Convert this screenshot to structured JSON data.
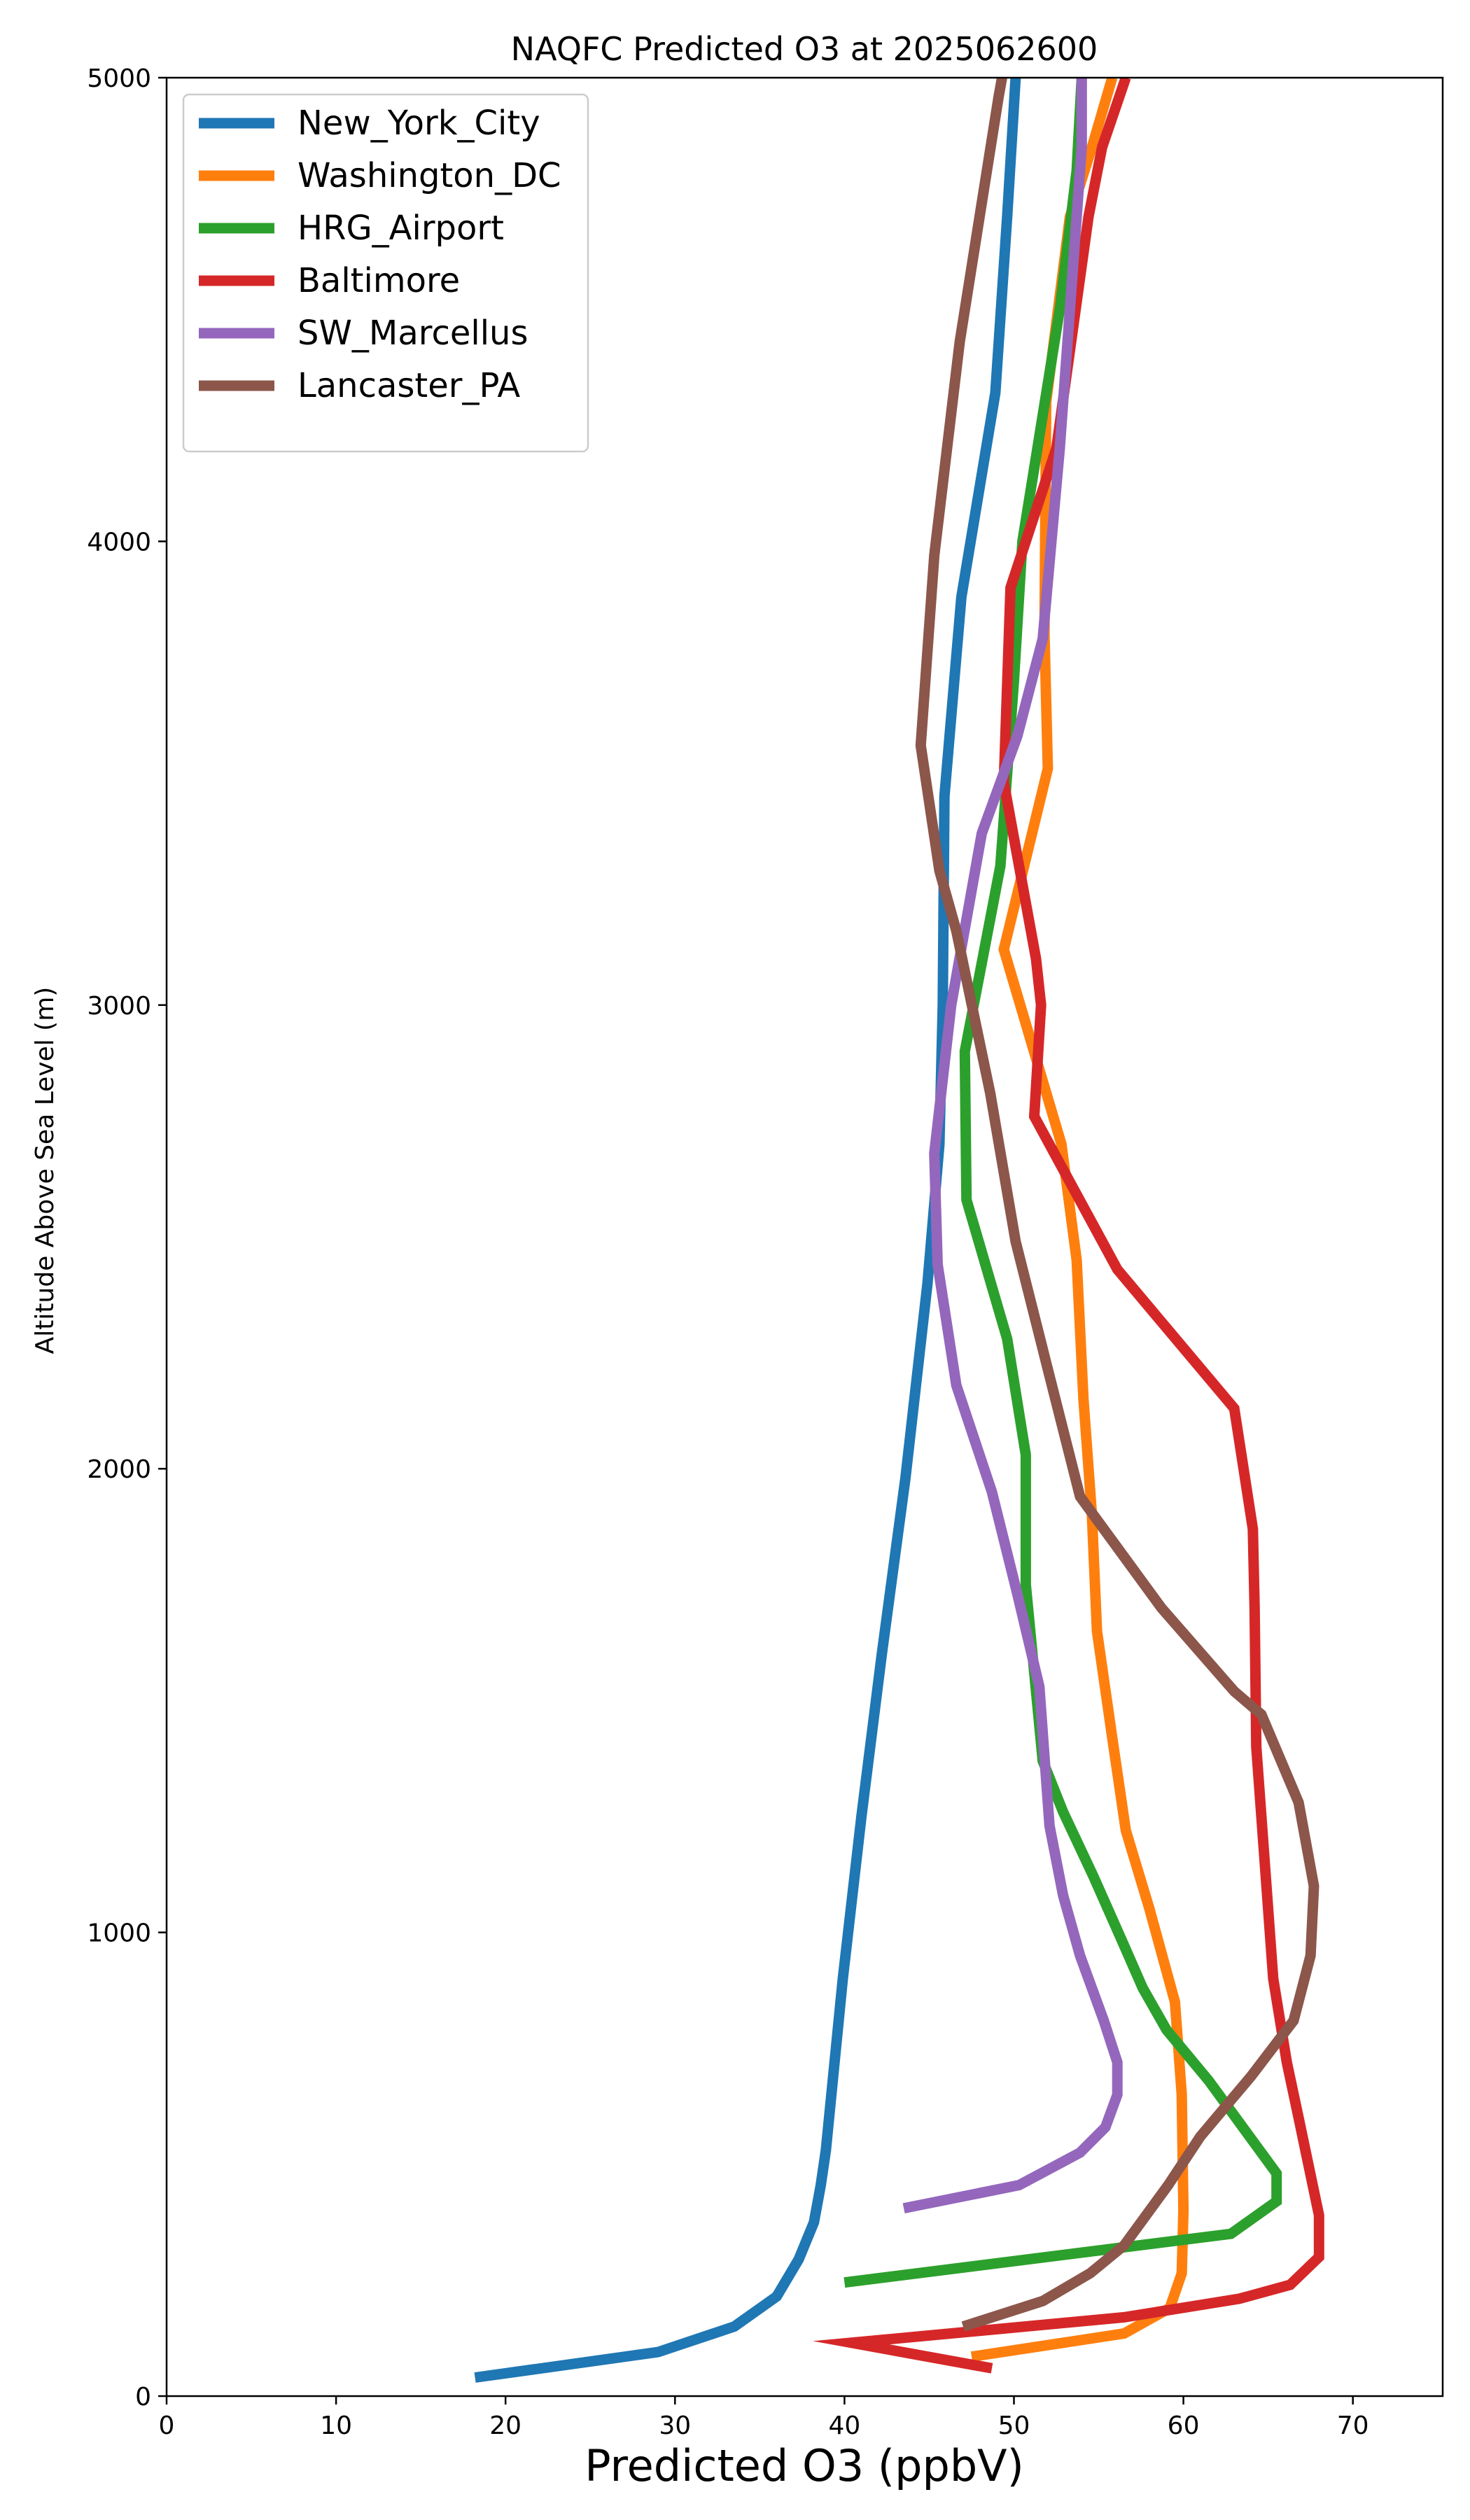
{
  "chart_data": {
    "type": "line",
    "title": "NAQFC Predicted O3 at 2025062600",
    "xlabel": "Predicted O3 (ppbV)",
    "ylabel": "Altitude Above Sea Level (m)",
    "xlim": [
      0,
      75.3
    ],
    "ylim": [
      0,
      5000
    ],
    "xticks": [
      0,
      10,
      20,
      30,
      40,
      50,
      60,
      70
    ],
    "yticks": [
      0,
      1000,
      2000,
      3000,
      4000,
      5000
    ],
    "grid": false,
    "legend_position": "upper-left",
    "series": [
      {
        "name": "New_York_City",
        "color": "#1f77b4",
        "points": [
          [
            18.2,
            40
          ],
          [
            29,
            95
          ],
          [
            33.5,
            150
          ],
          [
            36,
            215
          ],
          [
            37.3,
            295
          ],
          [
            38.2,
            375
          ],
          [
            38.6,
            455
          ],
          [
            38.9,
            530
          ],
          [
            39.9,
            900
          ],
          [
            41,
            1250
          ],
          [
            42.2,
            1600
          ],
          [
            43.6,
            1980
          ],
          [
            44.9,
            2400
          ],
          [
            45.6,
            2700
          ],
          [
            45.8,
            3000
          ],
          [
            45.9,
            3450
          ],
          [
            46.9,
            3880
          ],
          [
            48.9,
            4320
          ],
          [
            49.6,
            4700
          ],
          [
            50.1,
            5000
          ]
        ]
      },
      {
        "name": "Washington_DC",
        "color": "#ff7f0e",
        "points": [
          [
            47.5,
            85
          ],
          [
            56.5,
            135
          ],
          [
            59.2,
            190
          ],
          [
            59.9,
            265
          ],
          [
            60,
            400
          ],
          [
            59.9,
            650
          ],
          [
            59.5,
            850
          ],
          [
            58,
            1050
          ],
          [
            56.6,
            1220
          ],
          [
            55.8,
            1420
          ],
          [
            54.9,
            1650
          ],
          [
            54.6,
            1900
          ],
          [
            54.1,
            2150
          ],
          [
            53.7,
            2450
          ],
          [
            52.8,
            2700
          ],
          [
            49.4,
            3120
          ],
          [
            52,
            3510
          ],
          [
            51.8,
            3800
          ],
          [
            51.9,
            4300
          ],
          [
            53.3,
            4700
          ],
          [
            54.6,
            4850
          ],
          [
            55.8,
            5000
          ]
        ]
      },
      {
        "name": "HRG_Airport",
        "color": "#2ca02c",
        "points": [
          [
            40,
            245
          ],
          [
            62.8,
            350
          ],
          [
            65.5,
            420
          ],
          [
            65.5,
            480
          ],
          [
            63.5,
            580
          ],
          [
            61.5,
            680
          ],
          [
            59,
            790
          ],
          [
            57.6,
            880
          ],
          [
            56.4,
            980
          ],
          [
            54.7,
            1120
          ],
          [
            52.9,
            1260
          ],
          [
            51.7,
            1370
          ],
          [
            50.7,
            1750
          ],
          [
            50.7,
            2030
          ],
          [
            49.6,
            2280
          ],
          [
            47.2,
            2580
          ],
          [
            47.1,
            2900
          ],
          [
            49.2,
            3300
          ],
          [
            50,
            3700
          ],
          [
            50.5,
            4000
          ],
          [
            52.7,
            4500
          ],
          [
            53.7,
            4800
          ],
          [
            54,
            5000
          ]
        ]
      },
      {
        "name": "Baltimore",
        "color": "#d62728",
        "points": [
          [
            48.7,
            60
          ],
          [
            40.4,
            115
          ],
          [
            56.5,
            170
          ],
          [
            63.3,
            210
          ],
          [
            66.3,
            240
          ],
          [
            68,
            300
          ],
          [
            68,
            390
          ],
          [
            66.8,
            600
          ],
          [
            66.1,
            720
          ],
          [
            65.3,
            900
          ],
          [
            64.3,
            1400
          ],
          [
            64.2,
            1700
          ],
          [
            64.1,
            1870
          ],
          [
            63,
            2130
          ],
          [
            56.1,
            2430
          ],
          [
            51.2,
            2760
          ],
          [
            51.6,
            3000
          ],
          [
            51.3,
            3100
          ],
          [
            49.4,
            3480
          ],
          [
            49.8,
            3900
          ],
          [
            52.5,
            4200
          ],
          [
            54.4,
            4700
          ],
          [
            55.2,
            4850
          ],
          [
            56.6,
            5000
          ]
        ]
      },
      {
        "name": "SW_Marcellus",
        "color": "#9467bd",
        "points": [
          [
            43.5,
            405
          ],
          [
            50.3,
            455
          ],
          [
            53.9,
            525
          ],
          [
            55.4,
            580
          ],
          [
            56.1,
            650
          ],
          [
            56.1,
            720
          ],
          [
            55.3,
            810
          ],
          [
            53.9,
            950
          ],
          [
            52.9,
            1080
          ],
          [
            52.1,
            1230
          ],
          [
            51.5,
            1530
          ],
          [
            50.2,
            1730
          ],
          [
            48.7,
            1950
          ],
          [
            46.6,
            2180
          ],
          [
            45.5,
            2440
          ],
          [
            45.3,
            2680
          ],
          [
            46.3,
            3000
          ],
          [
            48.1,
            3370
          ],
          [
            50.2,
            3580
          ],
          [
            51.7,
            3790
          ],
          [
            52.7,
            4200
          ],
          [
            53.7,
            4700
          ],
          [
            54,
            4850
          ],
          [
            54,
            5000
          ]
        ]
      },
      {
        "name": "Lancaster_PA",
        "color": "#8c564b",
        "points": [
          [
            47,
            150
          ],
          [
            51.7,
            205
          ],
          [
            54.5,
            265
          ],
          [
            56.5,
            325
          ],
          [
            59.1,
            455
          ],
          [
            61,
            560
          ],
          [
            64,
            690
          ],
          [
            66.5,
            810
          ],
          [
            67.5,
            950
          ],
          [
            67.7,
            1100
          ],
          [
            66.8,
            1280
          ],
          [
            64.6,
            1470
          ],
          [
            63,
            1520
          ],
          [
            58.7,
            1700
          ],
          [
            53.9,
            1940
          ],
          [
            52.1,
            2200
          ],
          [
            50.1,
            2490
          ],
          [
            48.6,
            2810
          ],
          [
            46.6,
            3160
          ],
          [
            45.6,
            3290
          ],
          [
            44.5,
            3560
          ],
          [
            45.3,
            3970
          ],
          [
            46.8,
            4430
          ],
          [
            49.1,
            4960
          ],
          [
            49.3,
            5000
          ]
        ]
      }
    ]
  }
}
